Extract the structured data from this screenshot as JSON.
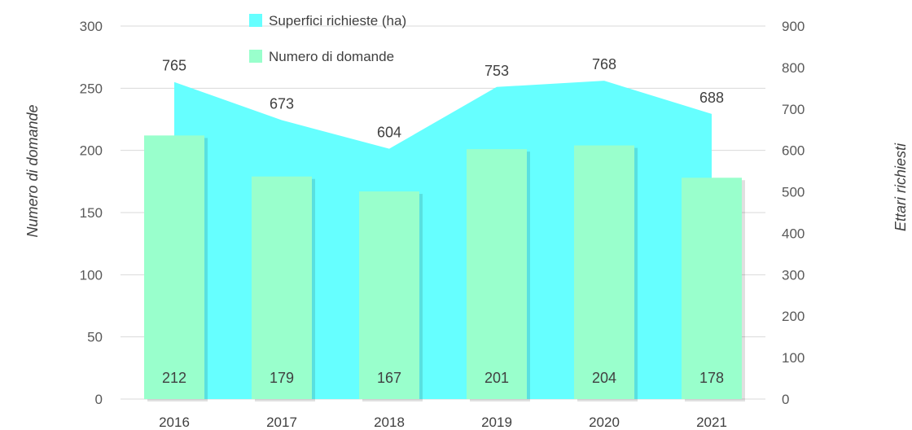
{
  "chart_data": {
    "type": "bar+area",
    "categories": [
      "2016",
      "2017",
      "2018",
      "2019",
      "2020",
      "2021"
    ],
    "series": [
      {
        "name": "Superfici richieste (ha)",
        "kind": "area",
        "axis": "right",
        "values": [
          765,
          673,
          604,
          753,
          768,
          688
        ]
      },
      {
        "name": "Numero di domande",
        "kind": "bar",
        "axis": "left",
        "values": [
          212,
          179,
          167,
          201,
          204,
          178
        ]
      }
    ],
    "ylabel_left": "Numero di domande",
    "ylabel_right": "Ettari richiesti",
    "ylim_left": [
      0,
      300
    ],
    "ylim_right": [
      0,
      900
    ],
    "yticks_left": [
      "0",
      "50",
      "100",
      "150",
      "200",
      "250",
      "300"
    ],
    "yticks_right": [
      "0",
      "100",
      "200",
      "300",
      "400",
      "500",
      "600",
      "700",
      "800",
      "900"
    ],
    "grid": true,
    "legend_position": "top-center",
    "colors": {
      "area": "#66FFFF",
      "bar": "#99FFCC",
      "grid": "#D9D9D9"
    }
  }
}
